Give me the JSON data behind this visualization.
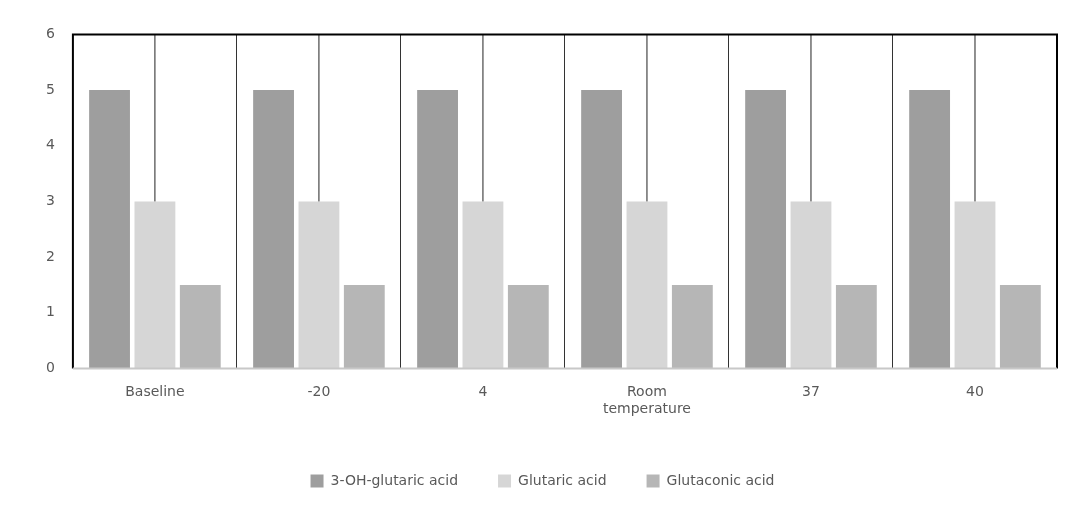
{
  "chart_data": {
    "type": "bar",
    "categories": [
      "Baseline",
      "-20",
      "4",
      "Room temperature",
      "37",
      "40"
    ],
    "series": [
      {
        "name": "3-OH-glutaric acid",
        "color": "#9e9e9e",
        "values": [
          5,
          5,
          5,
          5,
          5,
          5
        ]
      },
      {
        "name": "Glutaric acid",
        "color": "#d6d6d6",
        "values": [
          3,
          3,
          3,
          3,
          3,
          3
        ],
        "errors": [
          [
            3,
            6
          ],
          [
            3,
            6
          ],
          [
            3,
            6
          ],
          [
            3,
            6
          ],
          [
            3,
            6
          ],
          [
            3,
            6
          ]
        ]
      },
      {
        "name": "Glutaconic acid",
        "color": "#b6b6b6",
        "values": [
          1.5,
          1.5,
          1.5,
          1.5,
          1.5,
          1.5
        ]
      }
    ],
    "ylim": [
      0,
      6
    ],
    "yticks": [
      0,
      1,
      2,
      3,
      4,
      5,
      6
    ],
    "grid": "x",
    "legend": "bottom"
  }
}
